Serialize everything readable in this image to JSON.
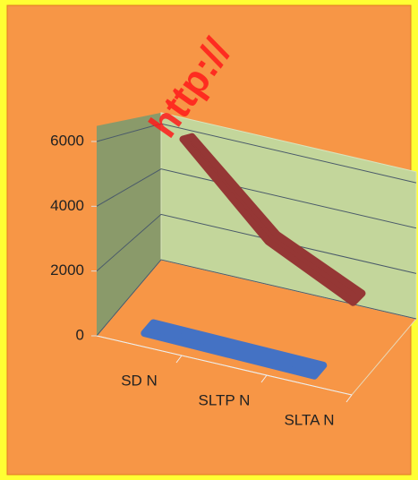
{
  "chart_data": {
    "type": "line3d",
    "categories": [
      "SD N",
      "SLTP N",
      "SLTA N"
    ],
    "series": [
      {
        "color": "#4472c4",
        "values": [
          200,
          150,
          100
        ]
      },
      {
        "color": "#953735",
        "values": [
          6000,
          2800,
          1200
        ]
      }
    ],
    "ylim": [
      0,
      6000
    ],
    "yticks": [
      0,
      2000,
      4000,
      6000
    ],
    "grid": true,
    "watermark": "http://"
  }
}
